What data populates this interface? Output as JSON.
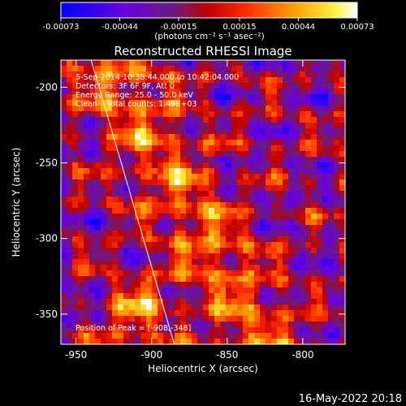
{
  "colorbar": {
    "ticks": [
      "-0.00073",
      "-0.00044",
      "-0.00015",
      "0.00015",
      "0.00044",
      "0.00073"
    ],
    "unit": "(photons cm⁻² s⁻¹ asec⁻²)"
  },
  "chart_data": {
    "type": "heatmap",
    "title": "Reconstructed RHESSI Image",
    "xlabel": "Heliocentric X (arcsec)",
    "ylabel": "Heliocentric Y (arcsec)",
    "xlim": [
      -960,
      -772
    ],
    "ylim": [
      -370,
      -182
    ],
    "x_ticks": [
      -950,
      -900,
      -850,
      -800
    ],
    "y_ticks": [
      -200,
      -250,
      -300,
      -350
    ],
    "color_range": [
      -0.00073,
      0.00073
    ],
    "limb_line": [
      [
        -940,
        -182
      ],
      [
        -885,
        -370
      ]
    ],
    "peak": {
      "x": -908,
      "y": -348
    },
    "annotations": [
      "5-Sep-2014 10:38:44.000 to 10:42:04.000",
      "Detectors: 3F 6F 9F, Att 0",
      "Energy Range: 25.0 - 50.0 keV",
      "Clean    Total counts: 1.49E+03",
      "Position of Peak = [-908,-348]"
    ]
  },
  "footer": {
    "date": "16-May-2022 20:18"
  }
}
